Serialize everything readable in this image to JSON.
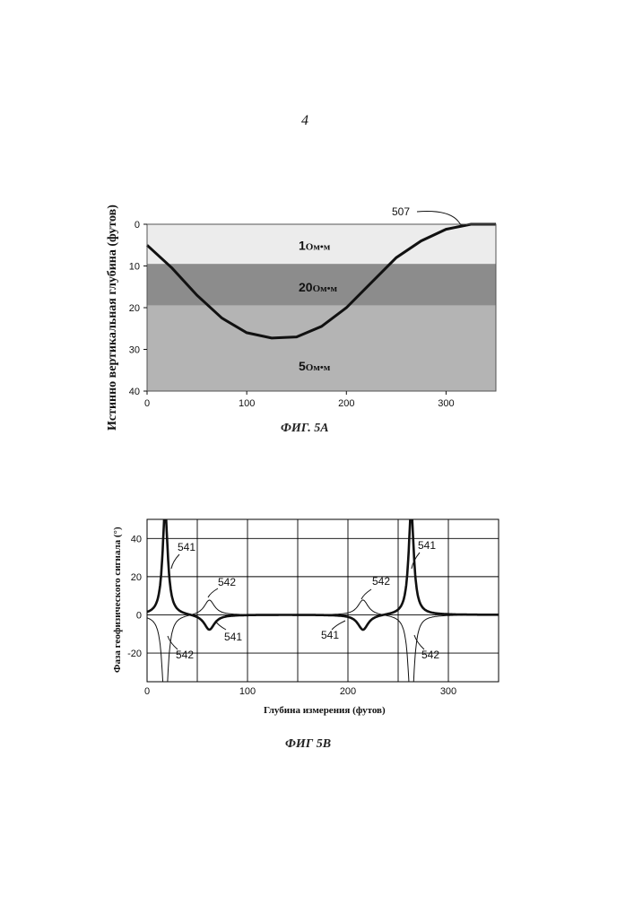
{
  "page_number": "4",
  "figure_a": {
    "caption": "ФИГ. 5А",
    "ylabel": "Истинно вертикальная глубина (футов)",
    "layer_labels": [
      {
        "num": "1",
        "unit": "Ом•м",
        "depth": 5
      },
      {
        "num": "20",
        "unit": "Ом•м",
        "depth": 15
      },
      {
        "num": "5",
        "unit": "Ом•м",
        "depth": 34
      }
    ],
    "annotation": "507",
    "chart_data": {
      "type": "line",
      "xlim": [
        0,
        350
      ],
      "ylim": [
        0,
        40
      ],
      "y_inverted": true,
      "xticks": [
        "0",
        "100",
        "200",
        "300"
      ],
      "yticks": [
        "0",
        "10",
        "20",
        "30",
        "40"
      ],
      "layers": [
        {
          "top": 0,
          "bottom": 9.5,
          "resistivity": "1 Ом•м",
          "color": "#ececec"
        },
        {
          "top": 9.5,
          "bottom": 19.5,
          "resistivity": "20 Ом•м",
          "color": "#8c8c8c"
        },
        {
          "top": 19.5,
          "bottom": 40,
          "resistivity": "5 Ом•м",
          "color": "#b4b4b4"
        }
      ],
      "series": [
        {
          "x": [
            0,
            25,
            50,
            75,
            100,
            125,
            150,
            175,
            200,
            225,
            250,
            275,
            300,
            325,
            350
          ],
          "y": [
            5,
            10.5,
            17,
            22.5,
            26,
            27.3,
            27,
            24.5,
            20,
            14,
            8,
            4,
            1.2,
            0,
            0
          ]
        }
      ]
    }
  },
  "figure_b": {
    "caption": "ФИГ 5В",
    "ylabel": "Фаза геофизического сигнала (°)",
    "xlabel": "Глубина измерения (футов)",
    "annotations": [
      "541",
      "542",
      "542",
      "541",
      "541",
      "542",
      "541",
      "542"
    ],
    "chart_data": {
      "type": "line",
      "xlim": [
        0,
        350
      ],
      "ylim": [
        -35,
        50
      ],
      "xticks": [
        "0",
        "100",
        "200",
        "300"
      ],
      "yticks": [
        "40",
        "20",
        "0",
        "-20"
      ],
      "series": [
        {
          "name": "541",
          "color": "#111111",
          "width": 2.6,
          "events": [
            [
              18,
              55
            ],
            [
              62,
              -8
            ],
            [
              215,
              -8
            ],
            [
              263,
              55
            ]
          ]
        },
        {
          "name": "542",
          "color": "#111111",
          "width": 1.0,
          "events": [
            [
              18,
              -55
            ],
            [
              62,
              8
            ],
            [
              215,
              8
            ],
            [
              263,
              -55
            ]
          ]
        }
      ]
    }
  },
  "colors": {
    "ink": "#111111",
    "grid": "#000000"
  }
}
